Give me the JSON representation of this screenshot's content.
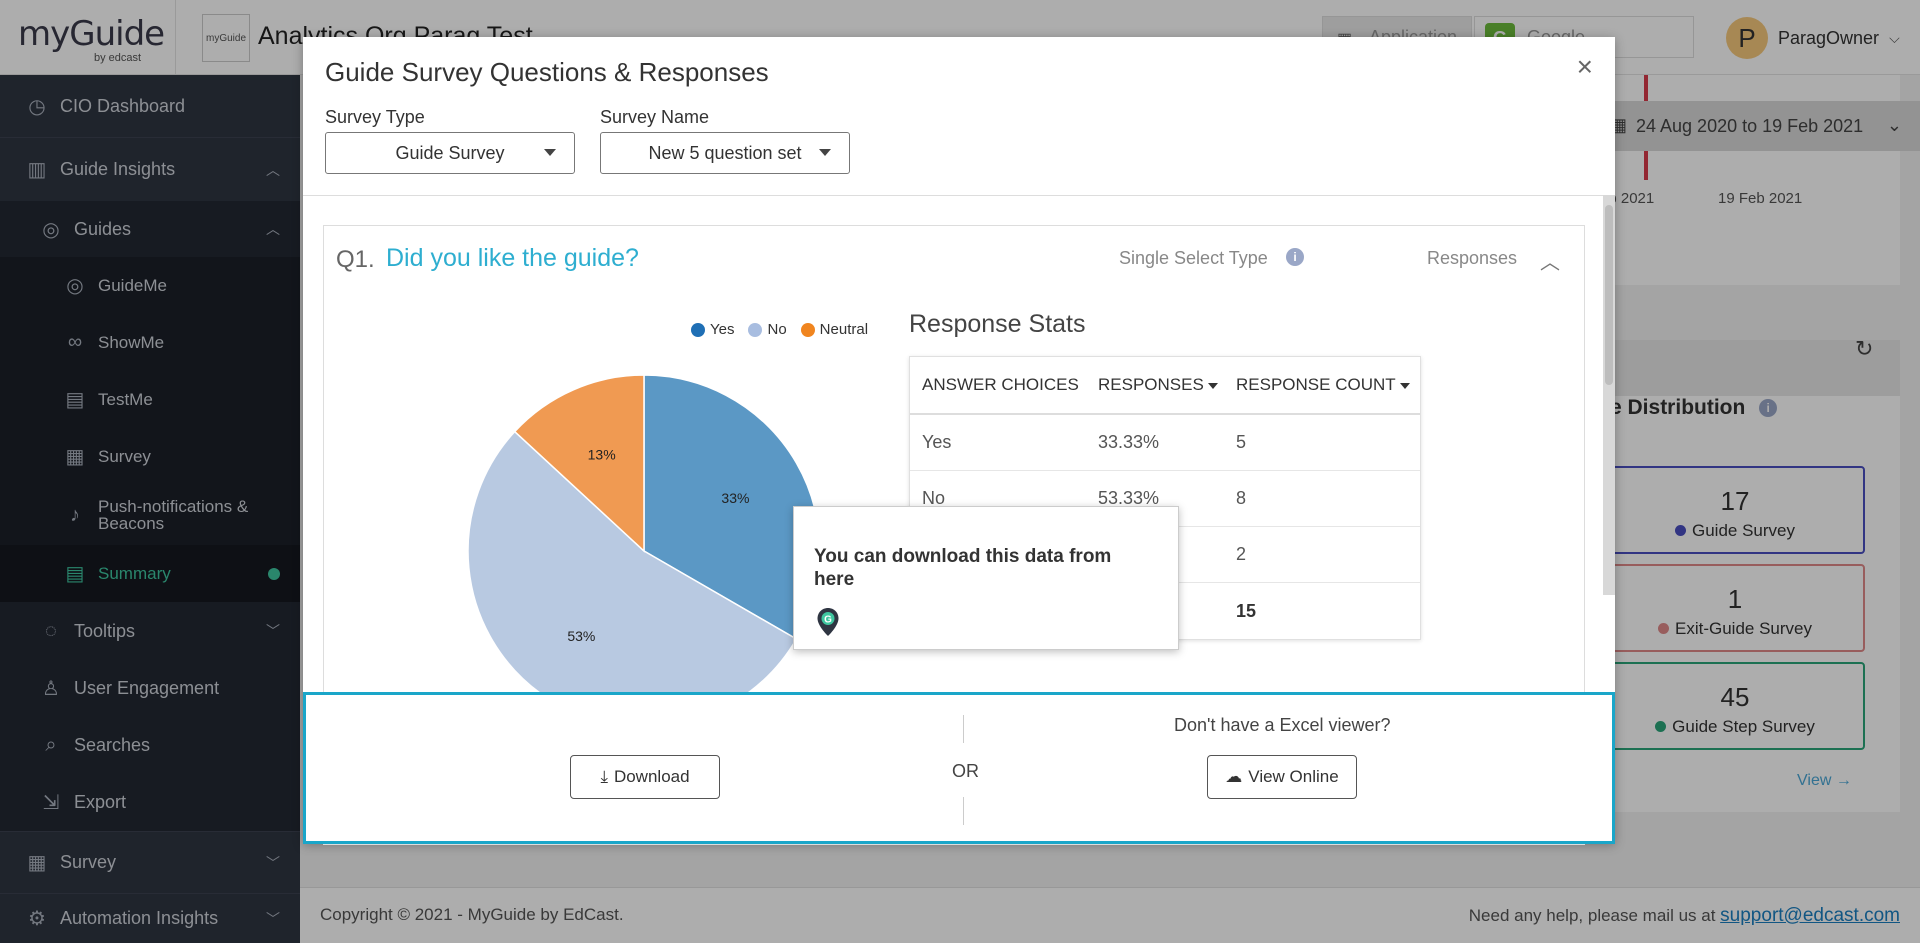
{
  "header": {
    "logo_text": "myGuide",
    "logo_sub": "by edcast",
    "org_logo_text": "myGuide",
    "org_name": "Analytics Org Parag Test",
    "app_selector": "Application",
    "app_name": "Google",
    "user_initial": "P",
    "user_name": "ParagOwner"
  },
  "sidebar": {
    "items": [
      {
        "label": "CIO Dashboard",
        "icon": "speedometer-icon"
      },
      {
        "label": "Guide Insights",
        "icon": "bar-chart-icon"
      },
      {
        "label": "Guides",
        "icon": "compass-icon"
      },
      {
        "label": "GuideMe",
        "icon": "compass-icon"
      },
      {
        "label": "ShowMe",
        "icon": "binoculars-icon"
      },
      {
        "label": "TestMe",
        "icon": "clipboard-icon"
      },
      {
        "label": "Survey",
        "icon": "survey-icon"
      },
      {
        "label": "Push-notifications & Beacons",
        "icon": "bell-icon"
      },
      {
        "label": "Summary",
        "icon": "summary-icon"
      },
      {
        "label": "Tooltips",
        "icon": "tooltip-icon"
      },
      {
        "label": "User Engagement",
        "icon": "user-icon"
      },
      {
        "label": "Searches",
        "icon": "search-icon"
      },
      {
        "label": "Export",
        "icon": "export-icon"
      },
      {
        "label": "Survey",
        "icon": "survey-icon"
      },
      {
        "label": "Automation Insights",
        "icon": "gear-icon"
      }
    ]
  },
  "background": {
    "date_range": "24 Aug 2020 to 19 Feb 2021",
    "date_label_1": "eb 2021",
    "date_label_2": "19 Feb 2021",
    "distribution_title": "e Distribution",
    "stats": [
      {
        "count": "17",
        "label": "Guide Survey",
        "color": "#4a4fc1"
      },
      {
        "count": "1",
        "label": "Exit-Guide Survey",
        "color": "#e08a8a"
      },
      {
        "count": "45",
        "label": "Guide Step Survey",
        "color": "#2aa57a"
      }
    ],
    "view_link": "View →"
  },
  "footer": {
    "copyright": "Copyright © 2021 - MyGuide by EdCast.",
    "help_text": "Need any help, please mail us at",
    "help_email": "support@edcast.com"
  },
  "modal": {
    "title": "Guide Survey Questions & Responses",
    "close": "×",
    "survey_type_label": "Survey Type",
    "survey_type_value": "Guide Survey",
    "survey_name_label": "Survey Name",
    "survey_name_value": "New 5 question set",
    "question": {
      "number": "Q1.",
      "text": "Did you like the guide?",
      "type": "Single Select Type",
      "responses_label": "Responses"
    },
    "stats_title": "Response Stats",
    "table": {
      "headers": [
        "ANSWER CHOICES",
        "RESPONSES",
        "RESPONSE COUNT"
      ],
      "rows": [
        [
          "Yes",
          "33.33%",
          "5"
        ],
        [
          "No",
          "53.33%",
          "8"
        ],
        [
          "",
          "",
          "2"
        ],
        [
          "",
          "",
          "15"
        ]
      ]
    }
  },
  "chart_data": {
    "type": "pie",
    "categories": [
      "Yes",
      "No",
      "Neutral"
    ],
    "values": [
      33,
      53,
      13
    ],
    "data_labels": [
      "33%",
      "53%",
      "13%"
    ],
    "colors": [
      "#5b98c5",
      "#b8c9e1",
      "#f09a52"
    ],
    "legend_colors": [
      "#1f6fb5",
      "#a8bde0",
      "#f0851f"
    ],
    "legend_placement": "top-right"
  },
  "tooltip": {
    "text": "You can download this data from here"
  },
  "download_bar": {
    "download_label": "Download",
    "or_label": "OR",
    "no_excel_text": "Don't have a Excel viewer?",
    "view_online_label": "View Online"
  }
}
